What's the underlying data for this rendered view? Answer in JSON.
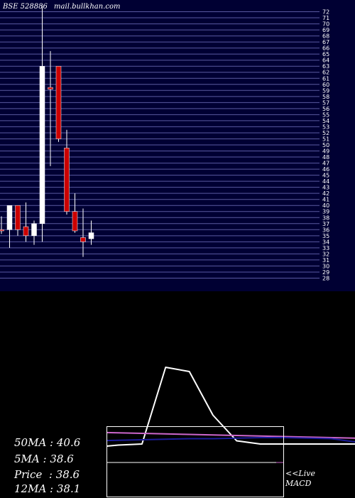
{
  "header": {
    "exchange_code": "BSE 528886",
    "site": "mail.bullkhan.com"
  },
  "colors": {
    "panel_bg": "#000033",
    "grid": "#5a5aa0",
    "bull": "#ffffff",
    "bear": "#cc0000",
    "macd_line": "#ffffff",
    "signal_line": "#cc66cc",
    "zero_line": "#1a1a99"
  },
  "chart_data": [
    {
      "type": "candlestick",
      "title": "",
      "ylim": [
        27,
        73
      ],
      "y_ticks": [
        72,
        71,
        70,
        69,
        68,
        67,
        66,
        65,
        64,
        63,
        62,
        61,
        60,
        59,
        58,
        57,
        56,
        55,
        54,
        53,
        52,
        51,
        50,
        49,
        48,
        47,
        46,
        45,
        44,
        43,
        42,
        41,
        40,
        39,
        38,
        37,
        36,
        35,
        34,
        33,
        32,
        31,
        30,
        29,
        28
      ],
      "candles": [
        {
          "o": 36.0,
          "h": 38.2,
          "l": 35.3,
          "c": 35.8
        },
        {
          "o": 36.0,
          "h": 40.0,
          "l": 33.0,
          "c": 40.0
        },
        {
          "o": 40.0,
          "h": 40.0,
          "l": 35.0,
          "c": 36.0
        },
        {
          "o": 36.5,
          "h": 40.5,
          "l": 34.0,
          "c": 35.0
        },
        {
          "o": 35.0,
          "h": 37.5,
          "l": 33.5,
          "c": 37.0
        },
        {
          "o": 37.0,
          "h": 73.0,
          "l": 34.0,
          "c": 63.0
        },
        {
          "o": 59.5,
          "h": 65.5,
          "l": 46.5,
          "c": 59.2
        },
        {
          "o": 63.0,
          "h": 63.0,
          "l": 50.5,
          "c": 51.0
        },
        {
          "o": 49.5,
          "h": 52.5,
          "l": 38.5,
          "c": 39.0
        },
        {
          "o": 39.0,
          "h": 42.0,
          "l": 35.5,
          "c": 35.8
        },
        {
          "o": 34.7,
          "h": 39.5,
          "l": 31.5,
          "c": 34.0
        },
        {
          "o": 34.5,
          "h": 37.5,
          "l": 33.5,
          "c": 35.5
        }
      ]
    },
    {
      "type": "line",
      "title": "",
      "ylim": [
        -3,
        9
      ],
      "series": [
        {
          "values": [
            0.0,
            0.0,
            0.6,
            -0.2,
            -0.3,
            -0.1,
            0.0,
            7.2,
            6.8,
            2.7,
            0.3,
            0.0,
            0.0,
            0.0,
            0.0,
            0.0
          ]
        },
        {
          "values": [
            1.3,
            1.25,
            1.2,
            1.15,
            1.1,
            1.05,
            1.0,
            0.95,
            0.9,
            0.85,
            0.8,
            0.75,
            0.7,
            0.65,
            0.6,
            0.55
          ]
        },
        {
          "values": [
            -0.2,
            0.0,
            0.1,
            0.2,
            0.3,
            0.35,
            0.4,
            0.45,
            0.5,
            0.5,
            0.55,
            0.6,
            0.6,
            0.55,
            0.5,
            0.2
          ]
        }
      ]
    }
  ],
  "ma_stats": [
    {
      "label": "50MA",
      "value": "40.6"
    },
    {
      "label": "5MA",
      "value": "38.6"
    },
    {
      "label": "Price",
      "value": "38.6"
    },
    {
      "label": "12MA",
      "value": "38.1"
    }
  ],
  "live_label": {
    "line1": "<<Live",
    "line2": "MACD"
  }
}
